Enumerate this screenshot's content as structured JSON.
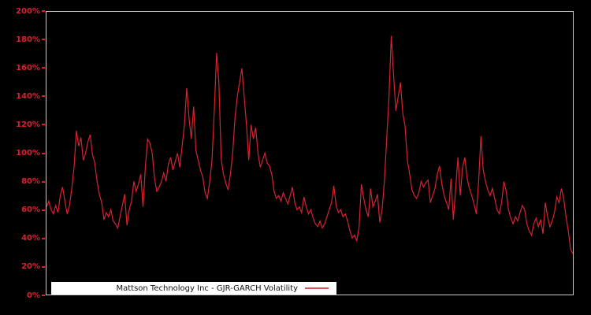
{
  "legend": {
    "label": "Mattson Technology Inc - GJR-GARCH Volatility"
  },
  "colors": {
    "line": "#d8232f",
    "tick_label": "#d8232f",
    "frame": "#c9c9c9",
    "background": "#000000",
    "legend_bg": "#ffffff"
  },
  "chart_data": {
    "type": "line",
    "title": "",
    "xlabel": "",
    "ylabel": "",
    "ylim": [
      0,
      200
    ],
    "ytick_values": [
      0,
      20,
      40,
      60,
      80,
      100,
      120,
      140,
      160,
      180,
      200
    ],
    "ytick_labels": [
      "0%",
      "20%",
      "40%",
      "60%",
      "80%",
      "100%",
      "120%",
      "140%",
      "160%",
      "180%",
      "200%"
    ],
    "grid": false,
    "legend_position": "lower left",
    "series": [
      {
        "name": "Mattson Technology Inc - GJR-GARCH Volatility",
        "unit": "percent",
        "color": "#d8232f",
        "values": [
          62,
          66,
          60,
          57,
          63,
          58,
          70,
          76,
          66,
          57,
          63,
          75,
          90,
          116,
          105,
          111,
          95,
          100,
          108,
          113,
          99,
          93,
          80,
          71,
          65,
          53,
          58,
          55,
          60,
          52,
          50,
          47,
          55,
          63,
          71,
          49,
          60,
          66,
          80,
          73,
          78,
          85,
          62,
          90,
          110,
          107,
          100,
          82,
          73,
          76,
          80,
          86,
          80,
          92,
          97,
          88,
          94,
          100,
          90,
          105,
          120,
          146,
          125,
          110,
          133,
          102,
          95,
          88,
          83,
          72,
          68,
          80,
          95,
          130,
          171,
          150,
          96,
          85,
          79,
          74,
          85,
          100,
          125,
          140,
          150,
          160,
          140,
          120,
          95,
          120,
          110,
          118,
          100,
          90,
          95,
          100,
          93,
          91,
          85,
          73,
          68,
          70,
          66,
          72,
          68,
          64,
          70,
          76,
          65,
          60,
          62,
          58,
          69,
          62,
          57,
          60,
          54,
          50,
          48,
          52,
          47,
          50,
          55,
          60,
          65,
          77,
          63,
          58,
          60,
          55,
          57,
          52,
          45,
          40,
          42,
          38,
          48,
          78,
          68,
          60,
          55,
          75,
          62,
          66,
          71,
          51,
          60,
          80,
          110,
          140,
          183,
          155,
          130,
          140,
          150,
          128,
          119,
          95,
          85,
          74,
          70,
          68,
          72,
          80,
          76,
          79,
          81,
          65,
          70,
          75,
          85,
          91,
          78,
          70,
          65,
          60,
          82,
          53,
          75,
          97,
          70,
          90,
          97,
          82,
          75,
          70,
          64,
          57,
          80,
          112,
          88,
          80,
          74,
          70,
          75,
          68,
          60,
          57,
          65,
          80,
          73,
          60,
          54,
          50,
          55,
          52,
          58,
          63,
          60,
          50,
          45,
          42,
          50,
          54,
          48,
          53,
          43,
          65,
          55,
          48,
          52,
          58,
          69,
          65,
          75,
          68,
          55,
          45,
          32,
          29
        ]
      }
    ]
  }
}
